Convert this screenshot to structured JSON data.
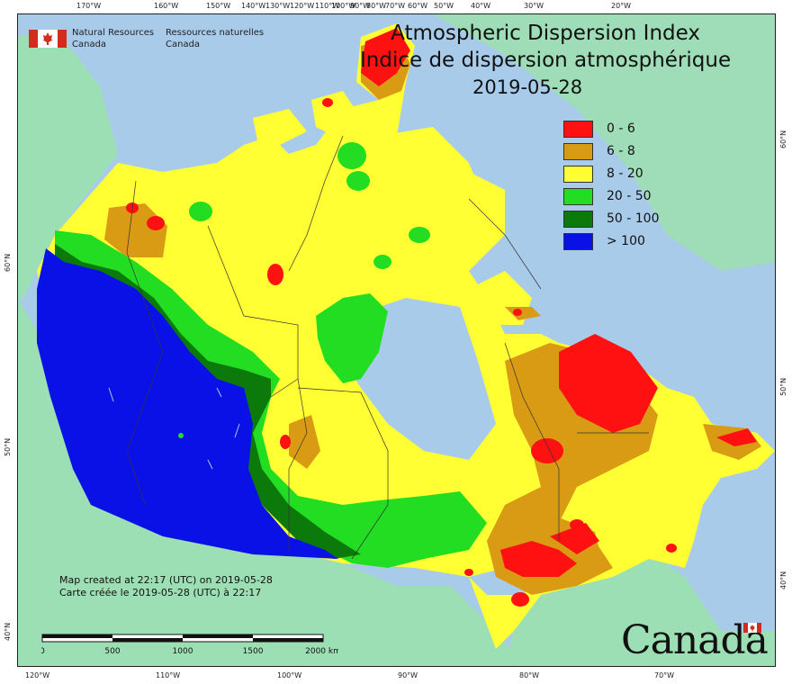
{
  "map": {
    "title_en": "Atmospheric Dispersion Index",
    "title_fr": "Indice de dispersion atmosphérique",
    "date": "2019-05-28"
  },
  "agency": {
    "name_en_line1": "Natural Resources",
    "name_en_line2": "Canada",
    "name_fr_line1": "Ressources naturelles",
    "name_fr_line2": "Canada"
  },
  "legend": [
    {
      "label": "0 - 6",
      "color": "#ff1111"
    },
    {
      "label": "6 - 8",
      "color": "#d99a14"
    },
    {
      "label": "8 - 20",
      "color": "#ffff33"
    },
    {
      "label": "20 - 50",
      "color": "#22dd22"
    },
    {
      "label": "50 - 100",
      "color": "#0b7a0b"
    },
    {
      "label": "> 100",
      "color": "#0a11e6"
    }
  ],
  "footer": {
    "created_en": "Map created at 22:17 (UTC) on 2019-05-28",
    "created_fr": "Carte créée le 2019-05-28 (UTC) à 22:17"
  },
  "scale": {
    "labels": [
      "0",
      "500",
      "1000",
      "1500",
      "2000"
    ],
    "unit": "km"
  },
  "wordmark": "Canada",
  "graticule": {
    "top": [
      "170°W",
      "160°W",
      "150°W",
      "140°W",
      "130°W",
      "120°W",
      "110°W",
      "100°W",
      "90°W",
      "80°W",
      "70°W",
      "60°W",
      "50°W",
      "40°W",
      "30°W",
      "20°W"
    ],
    "bottom": [
      "120°W",
      "110°W",
      "100°W",
      "90°W",
      "80°W",
      "70°W"
    ],
    "left": [
      "60°N",
      "50°N",
      "40°N"
    ],
    "right": [
      "60°N",
      "50°N",
      "40°N"
    ]
  },
  "colors": {
    "ocean": "#a9cbea",
    "foreign_land": "#9ddfb4",
    "lake": "#a9cbea"
  }
}
